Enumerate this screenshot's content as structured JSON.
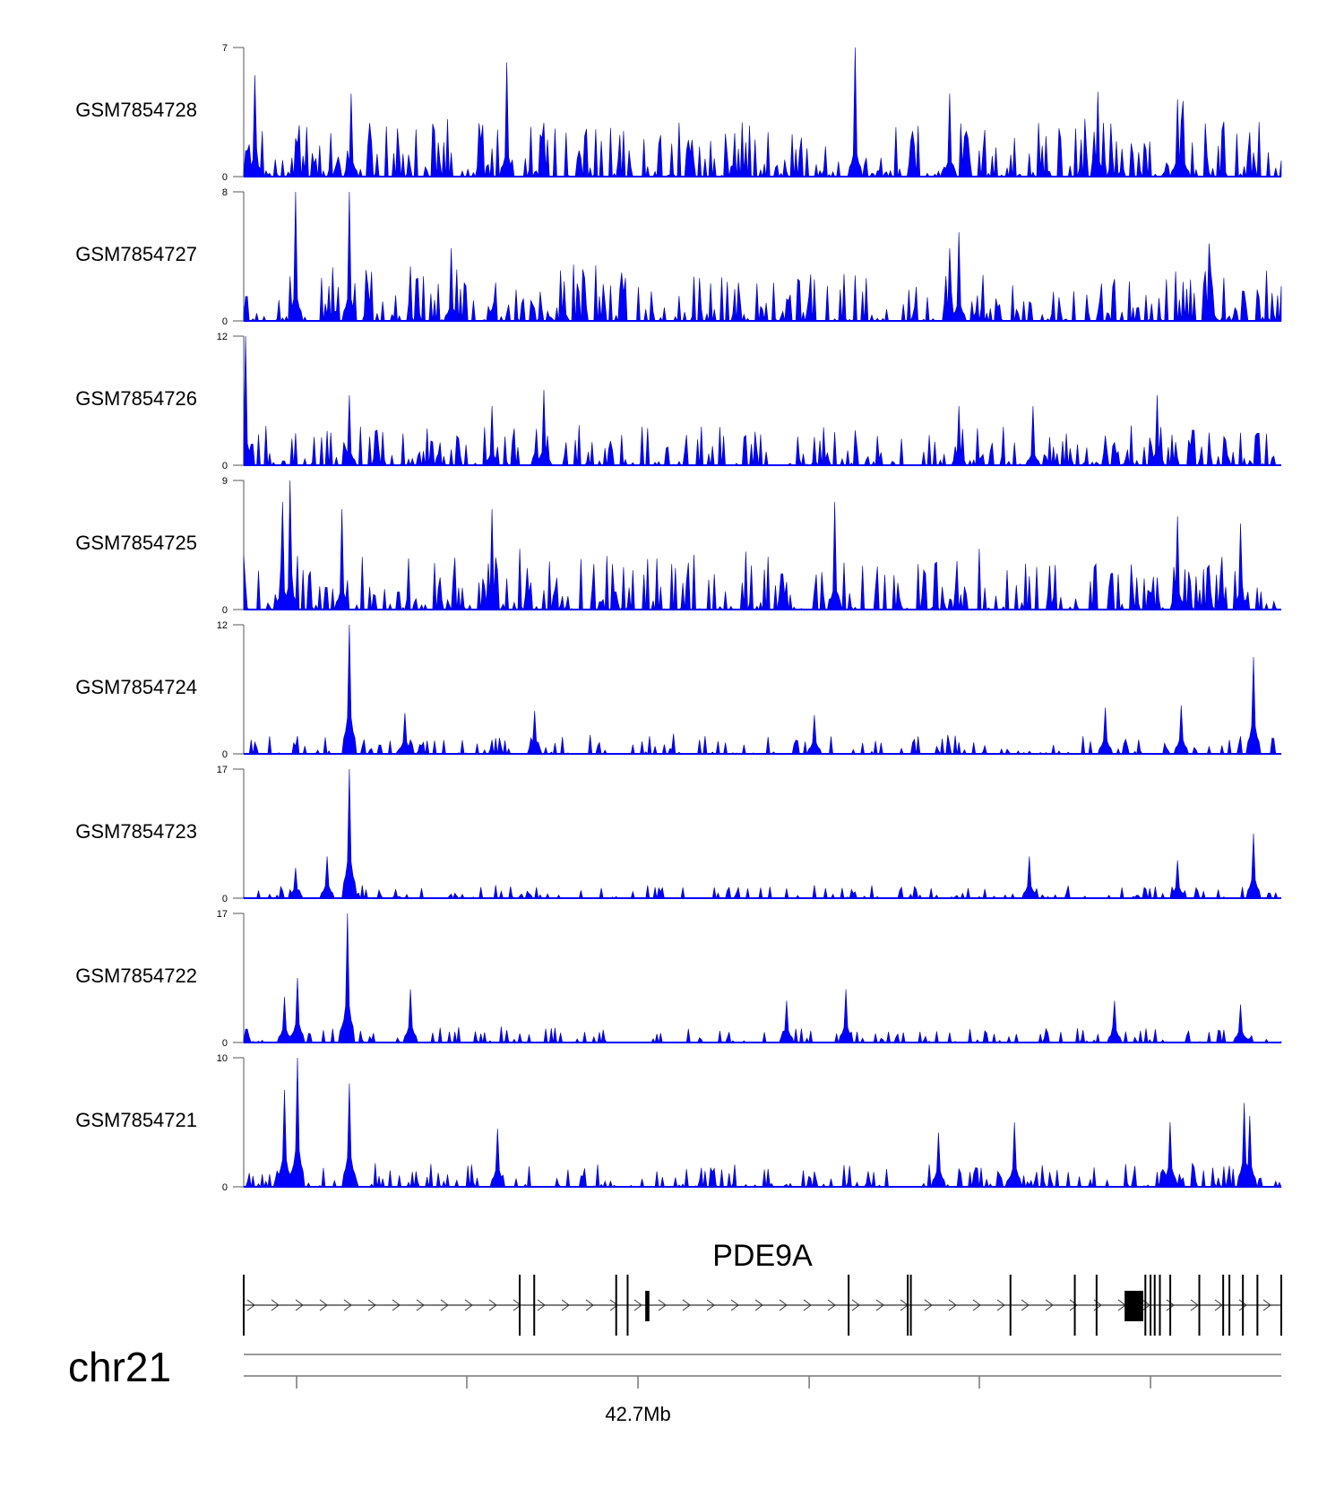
{
  "chart_data": {
    "type": "area",
    "x_range": [
      0,
      1
    ],
    "color": "#0000ff",
    "tracks": [
      {
        "name": "GSM7854728",
        "ylim": [
          0,
          7
        ],
        "noise": 0.42,
        "spikiness": 0.9,
        "seed": 11,
        "peaks": [
          [
            0.59,
            7
          ],
          [
            0.253,
            6.2
          ],
          [
            0.01,
            5.5
          ],
          [
            0.103,
            4.5
          ],
          [
            0.68,
            4.5
          ],
          [
            0.824,
            4.6
          ],
          [
            0.906,
            4.1
          ],
          [
            0.9,
            4.2
          ]
        ]
      },
      {
        "name": "GSM7854727",
        "ylim": [
          0,
          8
        ],
        "noise": 0.4,
        "spikiness": 0.9,
        "seed": 23,
        "peaks": [
          [
            0.05,
            8
          ],
          [
            0.101,
            8
          ],
          [
            0.69,
            5.5
          ],
          [
            0.68,
            4.5
          ],
          [
            0.2,
            4.5
          ],
          [
            0.93,
            4.8
          ]
        ]
      },
      {
        "name": "GSM7854726",
        "ylim": [
          0,
          12
        ],
        "noise": 0.3,
        "spikiness": 0.8,
        "seed": 37,
        "peaks": [
          [
            0.001,
            12
          ],
          [
            0.29,
            7
          ],
          [
            0.88,
            6.5
          ],
          [
            0.101,
            6.5
          ],
          [
            0.24,
            5.5
          ],
          [
            0.69,
            5.5
          ],
          [
            0.76,
            5.5
          ]
        ]
      },
      {
        "name": "GSM7854725",
        "ylim": [
          0,
          9
        ],
        "noise": 0.42,
        "spikiness": 0.85,
        "seed": 41,
        "peaks": [
          [
            0.045,
            9
          ],
          [
            0.57,
            7.5
          ],
          [
            0.24,
            7
          ],
          [
            0.095,
            7
          ],
          [
            0.037,
            7.5
          ],
          [
            0.9,
            6.5
          ],
          [
            0.96,
            6
          ]
        ]
      },
      {
        "name": "GSM7854724",
        "ylim": [
          0,
          12
        ],
        "noise": 0.14,
        "spikiness": 0.5,
        "seed": 53,
        "peaks": [
          [
            0.102,
            12
          ],
          [
            0.973,
            9
          ],
          [
            0.904,
            4.5
          ],
          [
            0.83,
            4.3
          ],
          [
            0.28,
            4
          ],
          [
            0.155,
            3.8
          ],
          [
            0.55,
            3.6
          ]
        ]
      },
      {
        "name": "GSM7854723",
        "ylim": [
          0,
          17
        ],
        "noise": 0.09,
        "spikiness": 0.5,
        "seed": 67,
        "peaks": [
          [
            0.101,
            17
          ],
          [
            0.973,
            8.5
          ],
          [
            0.757,
            5.5
          ],
          [
            0.08,
            5.5
          ],
          [
            0.9,
            5
          ],
          [
            0.05,
            4
          ]
        ]
      },
      {
        "name": "GSM7854722",
        "ylim": [
          0,
          17
        ],
        "noise": 0.11,
        "spikiness": 0.5,
        "seed": 79,
        "peaks": [
          [
            0.1,
            17
          ],
          [
            0.051,
            8.5
          ],
          [
            0.16,
            7
          ],
          [
            0.58,
            7
          ],
          [
            0.523,
            5.5
          ],
          [
            0.84,
            5.5
          ],
          [
            0.04,
            6
          ],
          [
            0.96,
            5
          ]
        ]
      },
      {
        "name": "GSM7854721",
        "ylim": [
          0,
          10
        ],
        "noise": 0.17,
        "spikiness": 0.6,
        "seed": 97,
        "peaks": [
          [
            0.051,
            10
          ],
          [
            0.101,
            8
          ],
          [
            0.964,
            6.5
          ],
          [
            0.04,
            7.5
          ],
          [
            0.892,
            5
          ],
          [
            0.742,
            5
          ],
          [
            0.67,
            4.2
          ],
          [
            0.245,
            4.5
          ],
          [
            0.97,
            5.5
          ]
        ]
      }
    ],
    "gene": {
      "name": "PDE9A",
      "strand": "+",
      "exons": [
        0.0,
        0.266,
        0.28,
        0.359,
        0.37,
        0.583,
        0.64,
        0.643,
        0.739,
        0.801,
        0.822,
        0.869,
        0.874,
        0.878,
        0.883,
        0.893,
        0.921,
        0.944,
        0.95,
        0.963,
        0.977,
        1.0
      ],
      "thick_exons": [
        [
          0.387,
          0.391
        ],
        [
          0.849,
          0.867
        ]
      ]
    },
    "chromosome": "chr21",
    "axis_ticks": [
      0.051,
      0.215,
      0.38,
      0.545,
      0.709,
      0.874
    ],
    "axis_tick_labels": [
      "",
      "",
      "42.7Mb",
      "",
      "",
      ""
    ]
  }
}
